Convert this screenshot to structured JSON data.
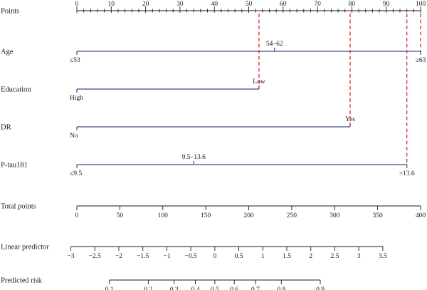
{
  "colors": {
    "axis": "#1a1a1a",
    "variable_line": "#3b4a9a",
    "reference_line": "#e8202a"
  },
  "chart_data": {
    "type": "nomogram",
    "title": "",
    "rows": [
      {
        "key": "points",
        "label": "Points",
        "kind": "axis",
        "min": 0,
        "max": 100,
        "major_ticks": [
          0,
          10,
          20,
          30,
          40,
          50,
          60,
          70,
          80,
          90,
          100
        ],
        "minor_step": 2
      },
      {
        "key": "age",
        "label": "Age",
        "kind": "variable",
        "line_points": [
          0,
          100
        ],
        "levels": [
          {
            "label": "≤53",
            "points": 0,
            "label_pos": "below"
          },
          {
            "label": "54–62",
            "points": 57.5,
            "label_pos": "above"
          },
          {
            "label": "≥63",
            "points": 100,
            "label_pos": "below"
          }
        ]
      },
      {
        "key": "education",
        "label": "Education",
        "kind": "variable",
        "line_points": [
          0,
          53
        ],
        "levels": [
          {
            "label": "High",
            "points": 0,
            "label_pos": "below"
          },
          {
            "label": "Low",
            "points": 53,
            "label_pos": "above"
          }
        ]
      },
      {
        "key": "dr",
        "label": "DR",
        "kind": "variable",
        "line_points": [
          0,
          79.5
        ],
        "levels": [
          {
            "label": "No",
            "points": 0,
            "label_pos": "below"
          },
          {
            "label": "Yes",
            "points": 79.5,
            "label_pos": "above"
          }
        ]
      },
      {
        "key": "ptau",
        "label": "P-tau181",
        "kind": "variable",
        "line_points": [
          0,
          96
        ],
        "levels": [
          {
            "label": "≤9.5",
            "points": 0,
            "label_pos": "below"
          },
          {
            "label": "9.5–13.6",
            "points": 34,
            "label_pos": "above"
          },
          {
            "label": ">13.6",
            "points": 96,
            "label_pos": "below"
          }
        ]
      },
      {
        "key": "total",
        "label": "Total points",
        "kind": "axis",
        "min": 0,
        "max": 400,
        "major_ticks": [
          0,
          50,
          100,
          150,
          200,
          250,
          300,
          350,
          400
        ]
      },
      {
        "key": "lp",
        "label": "Linear predictor",
        "kind": "axis",
        "min": -3,
        "max": 3.5,
        "total_at_min": -7,
        "total_at_max": 356,
        "major_ticks": [
          -3,
          -2.5,
          -2,
          -1.5,
          -1,
          -0.5,
          0,
          0.5,
          1,
          1.5,
          2,
          2.5,
          3,
          3.5
        ],
        "tick_labels": [
          "−3",
          "−2.5",
          "−2",
          "−1.5",
          "−1",
          "−0.5",
          "0",
          "0.5",
          "1",
          "1.5",
          "2",
          "2.5",
          "3",
          "3.5"
        ]
      },
      {
        "key": "risk",
        "label": "Predicted risk",
        "kind": "axis",
        "scale": "logit",
        "linked_to": "lp",
        "major_ticks": [
          0.1,
          0.2,
          0.3,
          0.4,
          0.5,
          0.6,
          0.7,
          0.8,
          0.9
        ],
        "tick_labels": [
          "0.1",
          "0.2",
          "0.3",
          "0.4",
          "0.5",
          "0.6",
          "0.7",
          "0.8",
          "0.9"
        ]
      }
    ],
    "reference_lines_points": [
      53,
      79.5,
      96,
      100
    ]
  }
}
